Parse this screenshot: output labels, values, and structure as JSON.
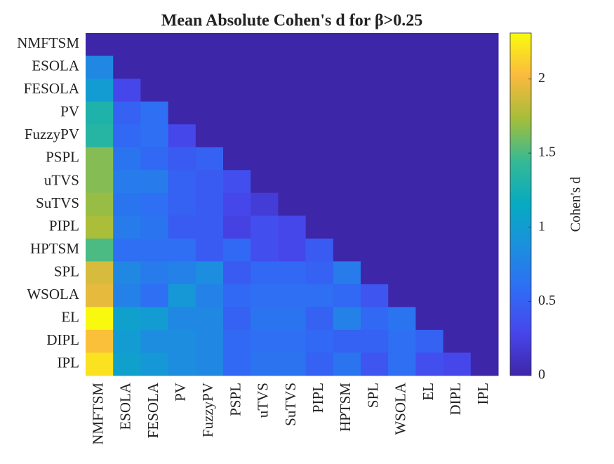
{
  "chart_data": {
    "type": "heatmap",
    "title": "Mean Absolute Cohen's d for β>0.25",
    "x_categories": [
      "NMFTSM",
      "ESOLA",
      "FESOLA",
      "PV",
      "FuzzyPV",
      "PSPL",
      "uTVS",
      "SuTVS",
      "PIPL",
      "HPTSM",
      "SPL",
      "WSOLA",
      "EL",
      "DIPL",
      "IPL"
    ],
    "y_categories": [
      "NMFTSM",
      "ESOLA",
      "FESOLA",
      "PV",
      "FuzzyPV",
      "PSPL",
      "uTVS",
      "SuTVS",
      "PIPL",
      "HPTSM",
      "SPL",
      "WSOLA",
      "EL",
      "DIPL",
      "IPL"
    ],
    "values": [
      [
        0,
        0,
        0,
        0,
        0,
        0,
        0,
        0,
        0,
        0,
        0,
        0,
        0,
        0,
        0
      ],
      [
        0.8,
        0,
        0,
        0,
        0,
        0,
        0,
        0,
        0,
        0,
        0,
        0,
        0,
        0,
        0
      ],
      [
        1.0,
        0.3,
        0,
        0,
        0,
        0,
        0,
        0,
        0,
        0,
        0,
        0,
        0,
        0,
        0
      ],
      [
        1.3,
        0.5,
        0.6,
        0,
        0,
        0,
        0,
        0,
        0,
        0,
        0,
        0,
        0,
        0,
        0
      ],
      [
        1.35,
        0.55,
        0.6,
        0.3,
        0,
        0,
        0,
        0,
        0,
        0,
        0,
        0,
        0,
        0,
        0
      ],
      [
        1.65,
        0.65,
        0.55,
        0.45,
        0.5,
        0,
        0,
        0,
        0,
        0,
        0,
        0,
        0,
        0,
        0
      ],
      [
        1.65,
        0.7,
        0.7,
        0.5,
        0.45,
        0.35,
        0,
        0,
        0,
        0,
        0,
        0,
        0,
        0,
        0
      ],
      [
        1.7,
        0.65,
        0.6,
        0.5,
        0.45,
        0.3,
        0.2,
        0,
        0,
        0,
        0,
        0,
        0,
        0,
        0
      ],
      [
        1.75,
        0.7,
        0.65,
        0.45,
        0.45,
        0.25,
        0.35,
        0.3,
        0,
        0,
        0,
        0,
        0,
        0,
        0
      ],
      [
        1.5,
        0.6,
        0.6,
        0.6,
        0.45,
        0.55,
        0.35,
        0.3,
        0.45,
        0,
        0,
        0,
        0,
        0,
        0
      ],
      [
        1.9,
        0.8,
        0.7,
        0.75,
        0.85,
        0.45,
        0.55,
        0.55,
        0.5,
        0.7,
        0,
        0,
        0,
        0,
        0
      ],
      [
        1.95,
        0.75,
        0.6,
        0.95,
        0.75,
        0.55,
        0.6,
        0.6,
        0.6,
        0.55,
        0.4,
        0,
        0,
        0,
        0
      ],
      [
        2.3,
        1.05,
        1.0,
        0.8,
        0.8,
        0.5,
        0.65,
        0.65,
        0.5,
        0.75,
        0.55,
        0.65,
        0,
        0,
        0
      ],
      [
        2.05,
        1.0,
        0.85,
        0.85,
        0.8,
        0.55,
        0.6,
        0.6,
        0.55,
        0.5,
        0.5,
        0.6,
        0.5,
        0,
        0
      ],
      [
        2.2,
        1.05,
        0.95,
        0.85,
        0.8,
        0.55,
        0.65,
        0.65,
        0.5,
        0.65,
        0.4,
        0.6,
        0.35,
        0.3,
        0
      ]
    ],
    "clim": [
      0,
      2.31
    ],
    "colorbar_ticks": [
      0,
      0.5,
      1,
      1.5,
      2
    ],
    "colorbar_label": "Cohen's d",
    "colormap": [
      "#3e26a8",
      "#4746eb",
      "#2f6cf5",
      "#1c8fde",
      "#07aac1",
      "#35b995",
      "#a5be3a",
      "#fbb93e",
      "#f9fb0e"
    ]
  }
}
